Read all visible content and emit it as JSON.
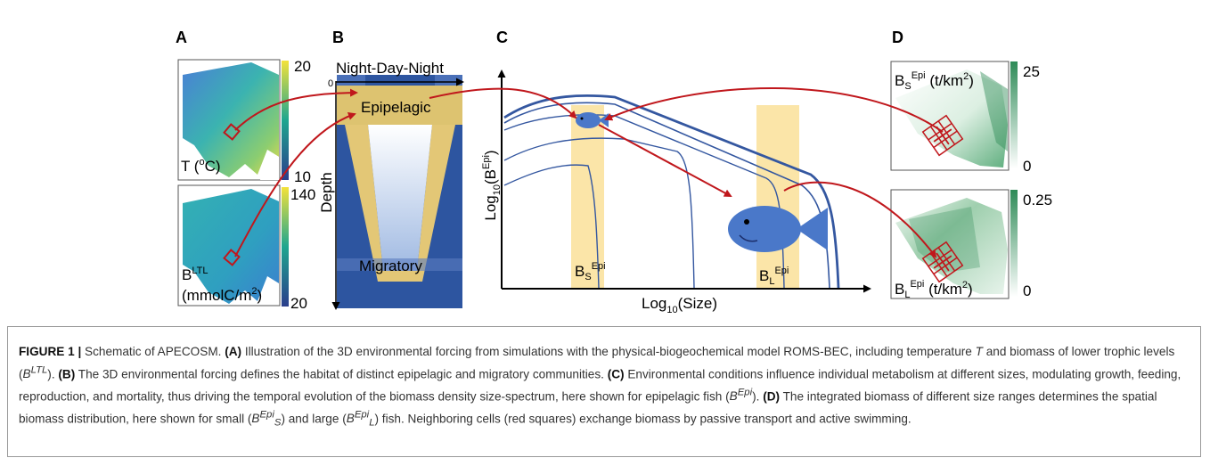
{
  "panels": {
    "A": {
      "letter": "A",
      "temperature": {
        "label": "T (",
        "sup": "o",
        "label_end": "C)",
        "max": "20",
        "min": "10"
      },
      "biomass": {
        "label": "B",
        "sup": "LTL",
        "unit": "(mmolC/m",
        "unit_sup": "2",
        "unit_end": ")",
        "max": "140",
        "min": "20"
      },
      "colors": {
        "low": "#2b3e8c",
        "mid": "#1ea68f",
        "high": "#f4e23a"
      }
    },
    "B": {
      "letter": "B",
      "cycle": "Night-Day-Night",
      "zero": "0",
      "ylabel": "Depth",
      "epipelagic": "Epipelagic",
      "migratory": "Migratory",
      "colors": {
        "deep": "#2d55a0",
        "band": "#f1cf6a",
        "light": "#e6eef9"
      }
    },
    "C": {
      "letter": "C",
      "xlabel": {
        "text": "Log",
        "sub": "10",
        "rest": "(Size)"
      },
      "ylabel": {
        "text": "Log",
        "sub": "10",
        "mid": "(B",
        "sup": "Epi",
        "end": ")"
      },
      "small_label": {
        "text": "B",
        "sub": "S",
        "sup": "Epi"
      },
      "large_label": {
        "text": "B",
        "sub": "L",
        "sup": "Epi"
      },
      "colors": {
        "curve": "#3457a0",
        "band": "#fbe5a8",
        "fish": "#4a78c9"
      }
    },
    "D": {
      "letter": "D",
      "small_map": {
        "text": "B",
        "sub": "S",
        "sup": "Epi",
        "unit": " (t/km",
        "unit_sup": "2",
        "unit_end": ")",
        "max": "25",
        "min": "0"
      },
      "large_map": {
        "text": "B",
        "sub": "L",
        "sup": "Epi",
        "unit": " (t/km",
        "unit_sup": "2",
        "unit_end": ")",
        "max": "0.25",
        "min": "0"
      },
      "colors": {
        "map": "#2e8b57",
        "light": "#e9f4ec",
        "arrow": "#c0171c"
      }
    }
  },
  "caption": {
    "label": "FIGURE 1 |",
    "title": " Schematic of APECOSM. ",
    "a_tag": "(A)",
    "a_text_1": " Illustration of the 3D environmental forcing from simulations with the physical-biogeochemical model ROMS-BEC, including temperature ",
    "a_T": "T",
    "a_text_2": " and biomass of lower trophic levels (",
    "a_B": "B",
    "a_sup": "LTL",
    "a_text_3": "). ",
    "b_tag": "(B)",
    "b_text": " The 3D environmental forcing defines the habitat of distinct epipelagic and migratory communities. ",
    "c_tag": "(C)",
    "c_text_1": " Environmental conditions influence individual metabolism at different sizes, modulating growth, feeding, reproduction, and mortality, thus driving the temporal evolution of the biomass density size-spectrum, here shown for epipelagic fish (",
    "c_B": "B",
    "c_sup": "Epi",
    "c_text_2": "). ",
    "d_tag": "(D)",
    "d_text_1": " The integrated biomass of different size ranges determines the spatial biomass distribution, here shown for small (",
    "d_B1": "B",
    "d_sup1": "Epi",
    "d_sub1": "S",
    "d_text_2": ") and large (",
    "d_B2": "B",
    "d_sup2": "Epi",
    "d_sub2": "L",
    "d_text_3": ") fish. Neighboring cells (red squares) exchange biomass by passive transport and active swimming."
  }
}
